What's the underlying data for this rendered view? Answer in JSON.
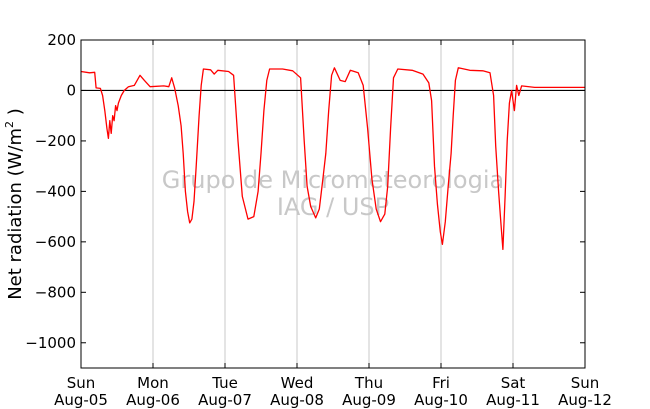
{
  "chart_data": {
    "type": "line",
    "ylabel": "Net radiation (W/m",
    "ylabel_superscript": "2",
    "ylabel_close": " )",
    "ylim": [
      -1100,
      200
    ],
    "yticks": [
      200,
      0,
      -200,
      -400,
      -600,
      -800,
      -1000
    ],
    "ytick_labels": [
      "200",
      "0",
      "−200",
      "−400",
      "−600",
      "−800",
      "−1000"
    ],
    "xlim": [
      0,
      7
    ],
    "x_unit": "days from Sun Aug-05 00:00",
    "xticks": [
      {
        "day": "Sun",
        "date": "Aug-05"
      },
      {
        "day": "Mon",
        "date": "Aug-06"
      },
      {
        "day": "Tue",
        "date": "Aug-07"
      },
      {
        "day": "Wed",
        "date": "Aug-08"
      },
      {
        "day": "Thu",
        "date": "Aug-09"
      },
      {
        "day": "Fri",
        "date": "Aug-10"
      },
      {
        "day": "Sat",
        "date": "Aug-11"
      },
      {
        "day": "Sun",
        "date": "Aug-12"
      }
    ],
    "grid": "vertical",
    "zero_line": true,
    "series": [
      {
        "color": "#ff0000",
        "points": [
          [
            0.0,
            75
          ],
          [
            0.12,
            70
          ],
          [
            0.19,
            72
          ],
          [
            0.21,
            10
          ],
          [
            0.27,
            8
          ],
          [
            0.3,
            -20
          ],
          [
            0.33,
            -80
          ],
          [
            0.36,
            -150
          ],
          [
            0.38,
            -190
          ],
          [
            0.4,
            -120
          ],
          [
            0.42,
            -170
          ],
          [
            0.44,
            -100
          ],
          [
            0.46,
            -120
          ],
          [
            0.48,
            -60
          ],
          [
            0.5,
            -80
          ],
          [
            0.52,
            -50
          ],
          [
            0.56,
            -20
          ],
          [
            0.6,
            0
          ],
          [
            0.66,
            15
          ],
          [
            0.74,
            20
          ],
          [
            0.82,
            60
          ],
          [
            0.88,
            40
          ],
          [
            0.96,
            15
          ],
          [
            1.15,
            18
          ],
          [
            1.22,
            15
          ],
          [
            1.26,
            50
          ],
          [
            1.3,
            10
          ],
          [
            1.35,
            -60
          ],
          [
            1.39,
            -140
          ],
          [
            1.42,
            -250
          ],
          [
            1.45,
            -400
          ],
          [
            1.48,
            -480
          ],
          [
            1.51,
            -525
          ],
          [
            1.54,
            -510
          ],
          [
            1.57,
            -440
          ],
          [
            1.6,
            -300
          ],
          [
            1.64,
            -100
          ],
          [
            1.67,
            20
          ],
          [
            1.7,
            85
          ],
          [
            1.8,
            82
          ],
          [
            1.85,
            65
          ],
          [
            1.9,
            80
          ],
          [
            2.05,
            75
          ],
          [
            2.12,
            60
          ],
          [
            2.18,
            -200
          ],
          [
            2.24,
            -420
          ],
          [
            2.32,
            -510
          ],
          [
            2.4,
            -500
          ],
          [
            2.46,
            -400
          ],
          [
            2.5,
            -250
          ],
          [
            2.54,
            -80
          ],
          [
            2.58,
            40
          ],
          [
            2.62,
            85
          ],
          [
            2.8,
            85
          ],
          [
            2.94,
            78
          ],
          [
            3.05,
            50
          ],
          [
            3.1,
            -200
          ],
          [
            3.14,
            -380
          ],
          [
            3.19,
            -460
          ],
          [
            3.26,
            -505
          ],
          [
            3.31,
            -470
          ],
          [
            3.36,
            -350
          ],
          [
            3.4,
            -250
          ],
          [
            3.44,
            -80
          ],
          [
            3.48,
            60
          ],
          [
            3.52,
            90
          ],
          [
            3.6,
            40
          ],
          [
            3.67,
            35
          ],
          [
            3.74,
            80
          ],
          [
            3.85,
            70
          ],
          [
            3.92,
            20
          ],
          [
            3.98,
            -150
          ],
          [
            4.04,
            -350
          ],
          [
            4.1,
            -470
          ],
          [
            4.16,
            -520
          ],
          [
            4.22,
            -490
          ],
          [
            4.26,
            -380
          ],
          [
            4.3,
            -150
          ],
          [
            4.34,
            50
          ],
          [
            4.4,
            85
          ],
          [
            4.6,
            80
          ],
          [
            4.75,
            65
          ],
          [
            4.83,
            30
          ],
          [
            4.87,
            -40
          ],
          [
            4.91,
            -300
          ],
          [
            4.95,
            -450
          ],
          [
            4.99,
            -560
          ],
          [
            5.02,
            -610
          ],
          [
            5.06,
            -520
          ],
          [
            5.1,
            -380
          ],
          [
            5.14,
            -250
          ],
          [
            5.17,
            -100
          ],
          [
            5.2,
            40
          ],
          [
            5.24,
            90
          ],
          [
            5.4,
            80
          ],
          [
            5.58,
            78
          ],
          [
            5.68,
            70
          ],
          [
            5.73,
            -20
          ],
          [
            5.76,
            -220
          ],
          [
            5.8,
            -400
          ],
          [
            5.83,
            -520
          ],
          [
            5.86,
            -630
          ],
          [
            5.89,
            -420
          ],
          [
            5.92,
            -200
          ],
          [
            5.95,
            -50
          ],
          [
            5.98,
            0
          ],
          [
            6.02,
            -80
          ],
          [
            6.05,
            20
          ],
          [
            6.08,
            -20
          ],
          [
            6.12,
            18
          ],
          [
            6.3,
            12
          ],
          [
            6.4,
            12
          ],
          [
            7.0,
            12
          ]
        ]
      }
    ],
    "watermark": [
      "Grupo de Micrometeorologia",
      "IAG / USP"
    ]
  }
}
